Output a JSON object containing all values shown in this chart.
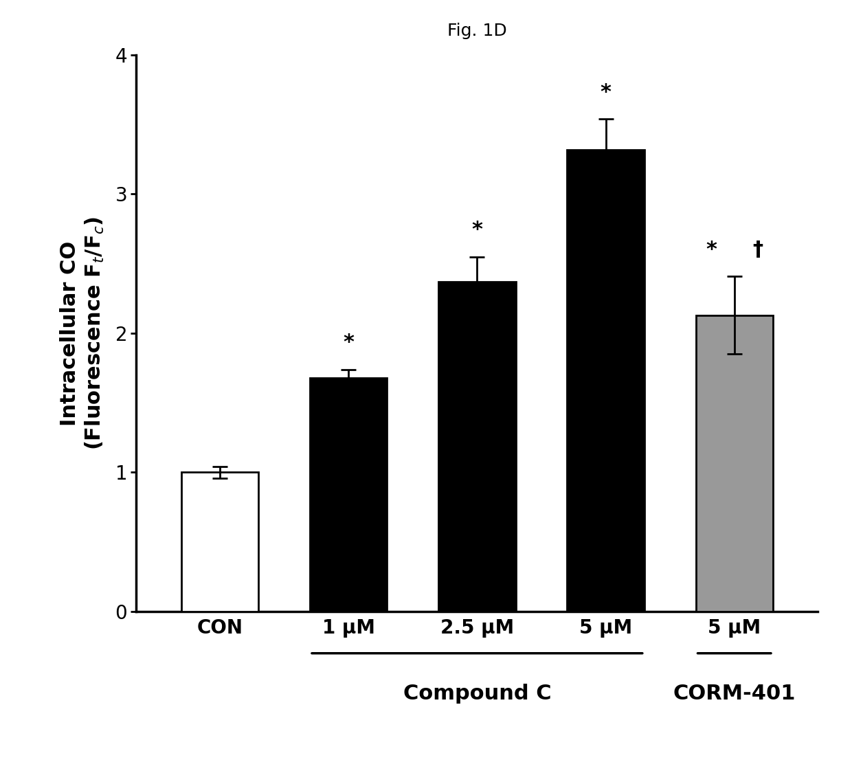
{
  "title": "Fig. 1D",
  "ylabel_line1": "Intracellular CO",
  "categories": [
    "CON",
    "1 μM",
    "2.5 μM",
    "5 μM",
    "5 μM"
  ],
  "values": [
    1.0,
    1.68,
    2.37,
    3.32,
    2.13
  ],
  "errors": [
    0.04,
    0.06,
    0.18,
    0.22,
    0.28
  ],
  "bar_colors": [
    "#ffffff",
    "#000000",
    "#000000",
    "#000000",
    "#999999"
  ],
  "bar_edgecolors": [
    "#000000",
    "#000000",
    "#000000",
    "#000000",
    "#000000"
  ],
  "ylim": [
    0,
    4
  ],
  "yticks": [
    0,
    1,
    2,
    3,
    4
  ],
  "significance_markers": [
    "",
    "*",
    "*",
    "*",
    "*†"
  ],
  "background_color": "#ffffff",
  "bar_width": 0.6,
  "title_fontsize": 18,
  "axis_label_fontsize": 22,
  "tick_fontsize": 20,
  "sig_fontsize": 22,
  "group_label_fontsize": 22
}
